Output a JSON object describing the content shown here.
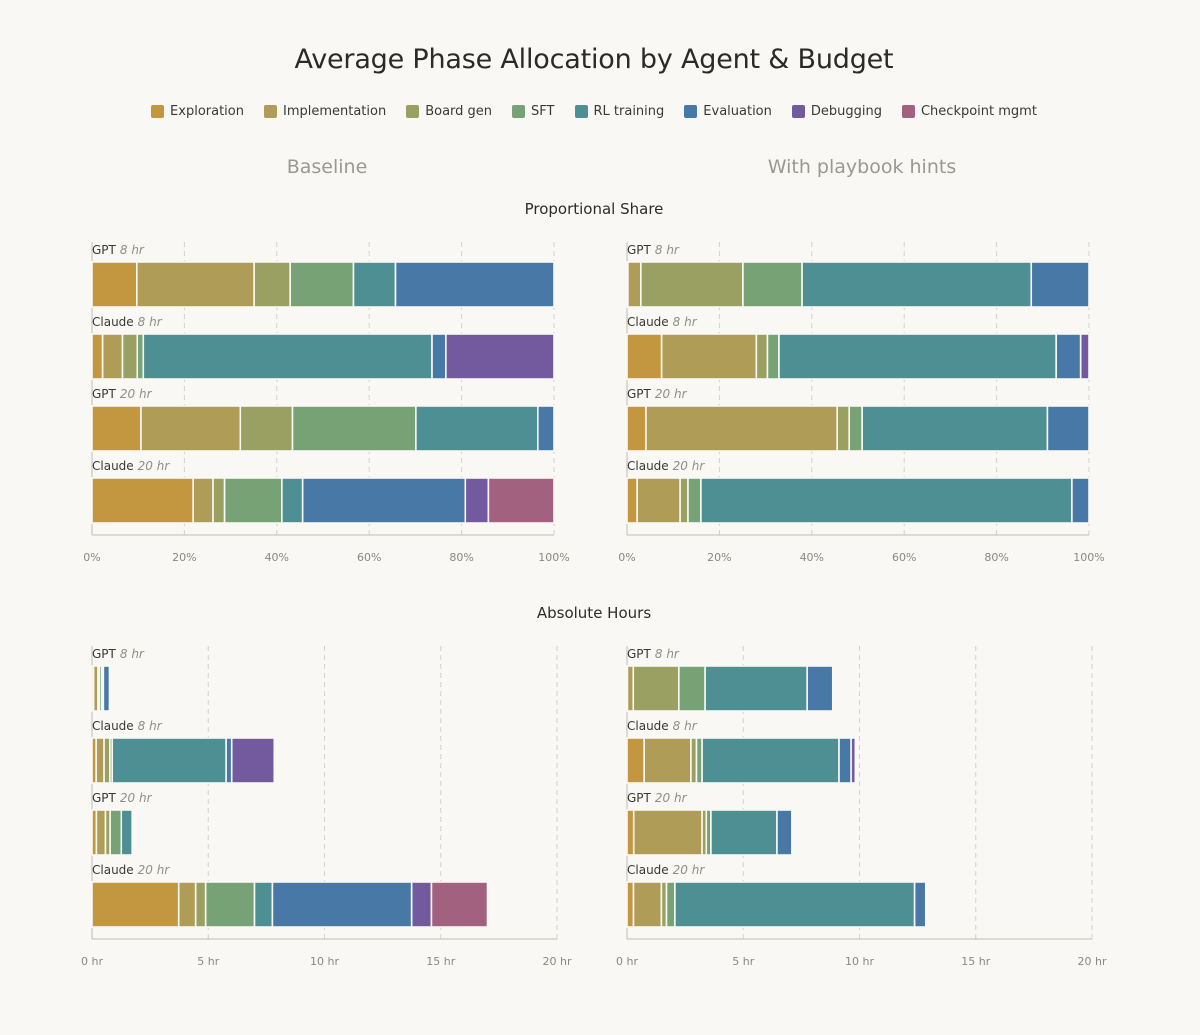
{
  "title": "Average Phase Allocation by Agent & Budget",
  "legend": [
    {
      "name": "Exploration",
      "color": "#c2973f"
    },
    {
      "name": "Implementation",
      "color": "#ae9c57"
    },
    {
      "name": "Board gen",
      "color": "#9aa062"
    },
    {
      "name": "SFT",
      "color": "#77a276"
    },
    {
      "name": "RL training",
      "color": "#4e8f94"
    },
    {
      "name": "Evaluation",
      "color": "#4878a6"
    },
    {
      "name": "Debugging",
      "color": "#735a9e"
    },
    {
      "name": "Checkpoint mgmt",
      "color": "#a1617f"
    }
  ],
  "columns": {
    "baseline": "Baseline",
    "hints": "With playbook hints"
  },
  "sections": {
    "proportional": "Proportional Share",
    "absolute": "Absolute Hours"
  },
  "rows": [
    {
      "agent": "GPT",
      "budget": "8 hr"
    },
    {
      "agent": "Claude",
      "budget": "8 hr"
    },
    {
      "agent": "GPT",
      "budget": "20 hr"
    },
    {
      "agent": "Claude",
      "budget": "20 hr"
    }
  ],
  "chart_data": [
    {
      "type": "bar",
      "orientation": "horizontal",
      "stacked": true,
      "panel": "Proportional Share — Baseline",
      "categories": [
        "GPT 8 hr",
        "Claude 8 hr",
        "GPT 20 hr",
        "Claude 20 hr"
      ],
      "xlim": [
        0,
        100
      ],
      "xticks": [
        "0%",
        "20%",
        "40%",
        "60%",
        "80%",
        "100%"
      ],
      "grid": "vertical dashed",
      "series": [
        {
          "name": "Exploration",
          "values": [
            9.7,
            2.3,
            10.6,
            21.9
          ]
        },
        {
          "name": "Implementation",
          "values": [
            25.4,
            4.3,
            21.5,
            4.3
          ]
        },
        {
          "name": "Board gen",
          "values": [
            7.8,
            3.2,
            11.3,
            2.5
          ]
        },
        {
          "name": "SFT",
          "values": [
            13.7,
            1.3,
            26.7,
            12.4
          ]
        },
        {
          "name": "RL training",
          "values": [
            9.1,
            62.5,
            26.4,
            4.5
          ]
        },
        {
          "name": "Evaluation",
          "values": [
            34.3,
            3.0,
            3.5,
            35.2
          ]
        },
        {
          "name": "Debugging",
          "values": [
            0,
            23.4,
            0,
            5.0
          ]
        },
        {
          "name": "Checkpoint mgmt",
          "values": [
            0,
            0,
            0,
            14.2
          ]
        }
      ]
    },
    {
      "type": "bar",
      "orientation": "horizontal",
      "stacked": true,
      "panel": "Proportional Share — With playbook hints",
      "categories": [
        "GPT 8 hr",
        "Claude 8 hr",
        "GPT 20 hr",
        "Claude 20 hr"
      ],
      "xlim": [
        0,
        100
      ],
      "xticks": [
        "0%",
        "20%",
        "40%",
        "60%",
        "80%",
        "100%"
      ],
      "grid": "vertical dashed",
      "series": [
        {
          "name": "Exploration",
          "values": [
            0.2,
            7.5,
            4.1,
            2.2
          ]
        },
        {
          "name": "Implementation",
          "values": [
            2.8,
            20.5,
            41.4,
            9.3
          ]
        },
        {
          "name": "Board gen",
          "values": [
            22.1,
            2.4,
            2.6,
            1.7
          ]
        },
        {
          "name": "SFT",
          "values": [
            12.8,
            2.5,
            2.8,
            2.8
          ]
        },
        {
          "name": "RL training",
          "values": [
            49.6,
            60.0,
            40.1,
            80.3
          ]
        },
        {
          "name": "Evaluation",
          "values": [
            12.5,
            5.3,
            9.0,
            3.7
          ]
        },
        {
          "name": "Debugging",
          "values": [
            0,
            1.8,
            0,
            0
          ]
        },
        {
          "name": "Checkpoint mgmt",
          "values": [
            0,
            0,
            0,
            0
          ]
        }
      ]
    },
    {
      "type": "bar",
      "orientation": "horizontal",
      "stacked": true,
      "panel": "Absolute Hours — Baseline",
      "categories": [
        "GPT 8 hr",
        "Claude 8 hr",
        "GPT 20 hr",
        "Claude 20 hr"
      ],
      "xlim": [
        0,
        20
      ],
      "xticks": [
        "0 hr",
        "5 hr",
        "10 hr",
        "15 hr",
        "20 hr"
      ],
      "grid": "vertical dashed",
      "series": [
        {
          "name": "Exploration",
          "values": [
            0.07,
            0.18,
            0.19,
            3.73
          ]
        },
        {
          "name": "Implementation",
          "values": [
            0.19,
            0.34,
            0.39,
            0.73
          ]
        },
        {
          "name": "Board gen",
          "values": [
            0.06,
            0.25,
            0.2,
            0.43
          ]
        },
        {
          "name": "SFT",
          "values": [
            0.1,
            0.1,
            0.48,
            2.1
          ]
        },
        {
          "name": "RL training",
          "values": [
            0.07,
            4.9,
            0.47,
            0.77
          ]
        },
        {
          "name": "Evaluation",
          "values": [
            0.26,
            0.24,
            0.06,
            5.99
          ]
        },
        {
          "name": "Debugging",
          "values": [
            0,
            1.83,
            0,
            0.85
          ]
        },
        {
          "name": "Checkpoint mgmt",
          "values": [
            0,
            0,
            0,
            2.41
          ]
        }
      ]
    },
    {
      "type": "bar",
      "orientation": "horizontal",
      "stacked": true,
      "panel": "Absolute Hours — With playbook hints",
      "categories": [
        "GPT 8 hr",
        "Claude 8 hr",
        "GPT 20 hr",
        "Claude 20 hr"
      ],
      "xlim": [
        0,
        20
      ],
      "xticks": [
        "0 hr",
        "5 hr",
        "10 hr",
        "15 hr",
        "20 hr"
      ],
      "grid": "vertical dashed",
      "series": [
        {
          "name": "Exploration",
          "values": [
            0.02,
            0.74,
            0.29,
            0.28
          ]
        },
        {
          "name": "Implementation",
          "values": [
            0.25,
            2.01,
            2.94,
            1.2
          ]
        },
        {
          "name": "Board gen",
          "values": [
            1.96,
            0.24,
            0.18,
            0.22
          ]
        },
        {
          "name": "SFT",
          "values": [
            1.13,
            0.24,
            0.2,
            0.36
          ]
        },
        {
          "name": "RL training",
          "values": [
            4.39,
            5.89,
            2.84,
            10.31
          ]
        },
        {
          "name": "Evaluation",
          "values": [
            1.1,
            0.52,
            0.64,
            0.48
          ]
        },
        {
          "name": "Debugging",
          "values": [
            0,
            0.18,
            0,
            0
          ]
        },
        {
          "name": "Checkpoint mgmt",
          "values": [
            0,
            0,
            0,
            0
          ]
        }
      ]
    }
  ]
}
